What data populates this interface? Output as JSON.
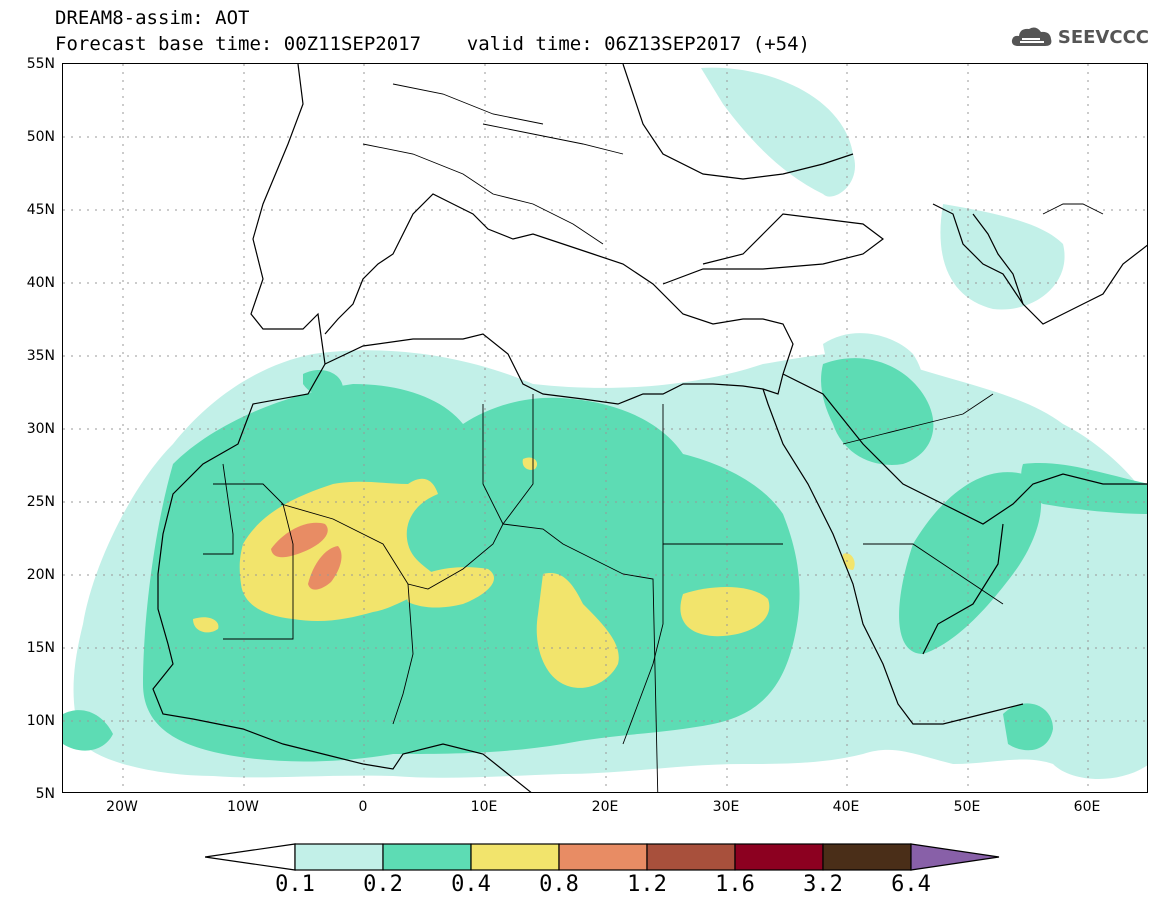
{
  "header": {
    "title_line1": "DREAM8-assim: AOT",
    "title_line2": "Forecast base time: 00Z11SEP2017    valid time: 06Z13SEP2017 (+54)",
    "logo_text": "SEEVCCC"
  },
  "map": {
    "latitude_labels": [
      "55N",
      "50N",
      "45N",
      "40N",
      "35N",
      "30N",
      "25N",
      "20N",
      "15N",
      "10N",
      "5N"
    ],
    "longitude_labels": [
      "20W",
      "10W",
      "0",
      "10E",
      "20E",
      "30E",
      "40E",
      "50E",
      "60E"
    ],
    "extent": {
      "lon_min": -25,
      "lon_max": 65,
      "lat_min": 5,
      "lat_max": 55
    },
    "variable": "AOT"
  },
  "colorbar": {
    "levels": [
      "0.1",
      "0.2",
      "0.4",
      "0.8",
      "1.2",
      "1.6",
      "3.2",
      "6.4"
    ],
    "colors": [
      "#ffffff",
      "#c2f0e8",
      "#5ddcb4",
      "#f2e46c",
      "#e88c64",
      "#a8503c",
      "#8c0020",
      "#4a2e18",
      "#8860a8"
    ]
  }
}
